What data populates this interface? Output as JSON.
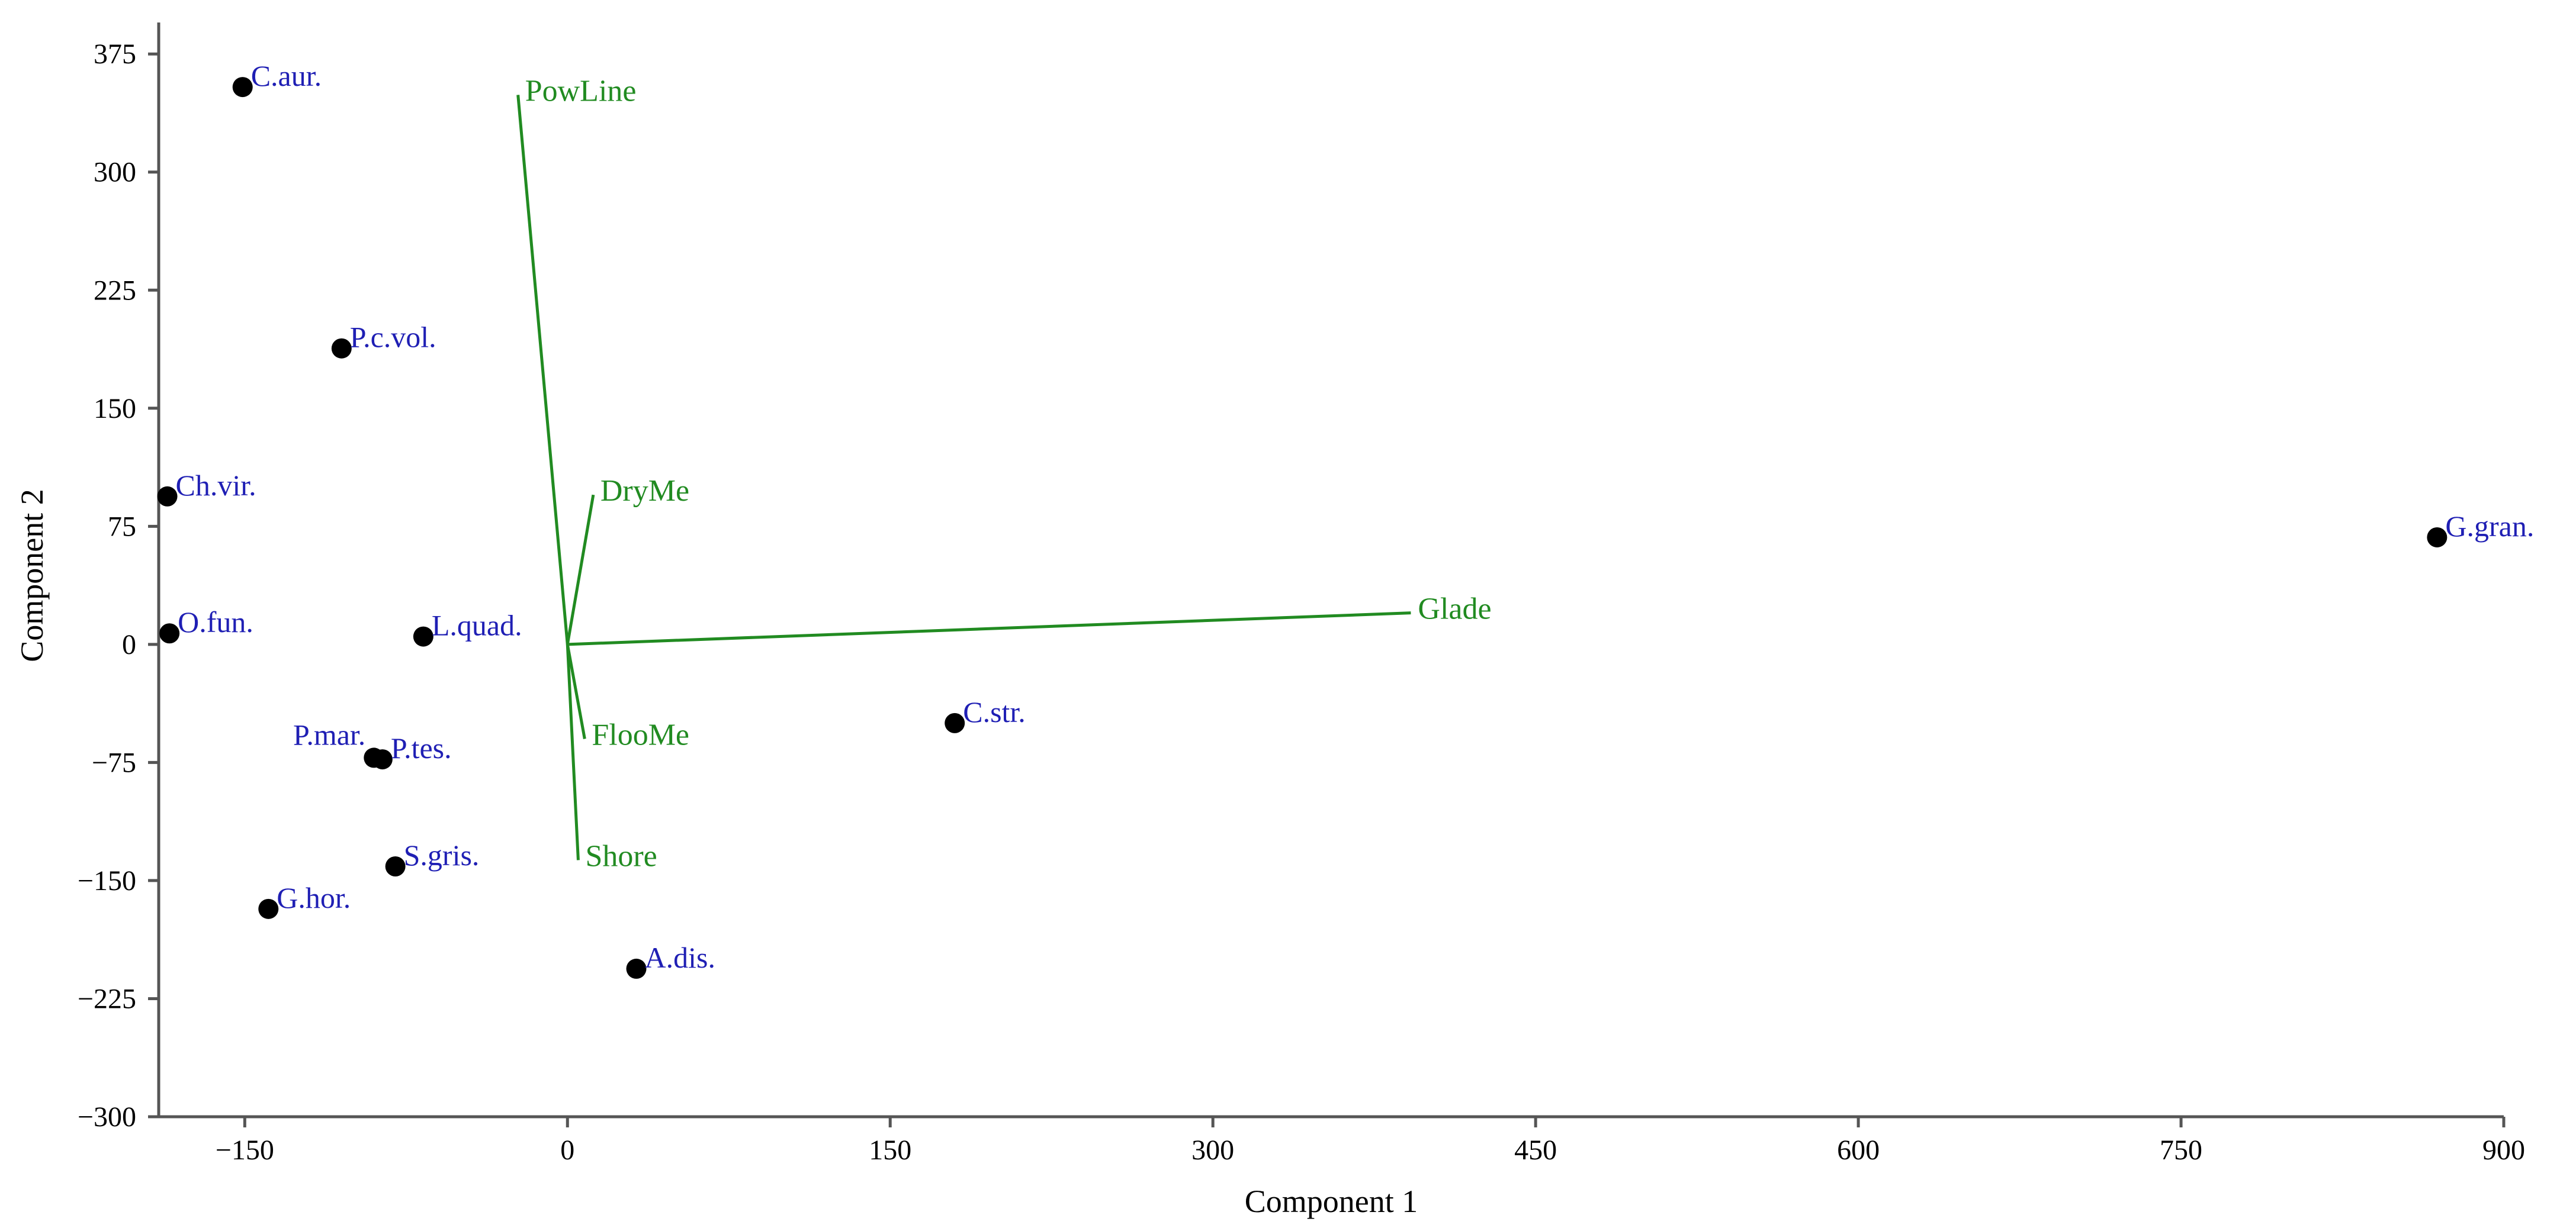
{
  "chart_data": {
    "type": "scatter",
    "subtype": "pca-biplot",
    "title": "",
    "xlabel": "Component 1",
    "ylabel": "Component 2",
    "xlim": [
      -190,
      900
    ],
    "ylim": [
      -300,
      395
    ],
    "x_ticks": [
      -150,
      0,
      150,
      300,
      450,
      600,
      750,
      900
    ],
    "y_ticks": [
      -300,
      -225,
      -150,
      -75,
      0,
      75,
      150,
      225,
      300,
      375
    ],
    "x_tick_labels": [
      "−150",
      "0",
      "150",
      "300",
      "450",
      "600",
      "750",
      "900"
    ],
    "y_tick_labels": [
      "−300",
      "−225",
      "−150",
      "−75",
      "0",
      "75",
      "150",
      "225",
      "300",
      "375"
    ],
    "grid": false,
    "legend": "none",
    "colors": {
      "points": "#000000",
      "point_labels": "#1f1fb4",
      "vectors": "#218b21",
      "axes": "#555555"
    },
    "points": [
      {
        "label": "C.aur.",
        "x": -151,
        "y": 354
      },
      {
        "label": "P.c.vol.",
        "x": -105,
        "y": 188
      },
      {
        "label": "Ch.vir.",
        "x": -186,
        "y": 94
      },
      {
        "label": "O.fun.",
        "x": -185,
        "y": 7
      },
      {
        "label": "L.quad.",
        "x": -67,
        "y": 5
      },
      {
        "label": "P.mar.",
        "x": -90,
        "y": -72
      },
      {
        "label": "P.tes.",
        "x": -86,
        "y": -73
      },
      {
        "label": "S.gris.",
        "x": -80,
        "y": -141
      },
      {
        "label": "G.hor.",
        "x": -139,
        "y": -168
      },
      {
        "label": "A.dis.",
        "x": 32,
        "y": -206
      },
      {
        "label": "C.str.",
        "x": 180,
        "y": -50
      },
      {
        "label": "G.gran.",
        "x": 869,
        "y": 68
      }
    ],
    "vectors": [
      {
        "label": "PowLine",
        "x": -23,
        "y": 349
      },
      {
        "label": "DryMe",
        "x": 12,
        "y": 95
      },
      {
        "label": "Glade",
        "x": 392,
        "y": 20
      },
      {
        "label": "FlooMe",
        "x": 8,
        "y": -60
      },
      {
        "label": "Shore",
        "x": 5,
        "y": -137
      }
    ]
  }
}
